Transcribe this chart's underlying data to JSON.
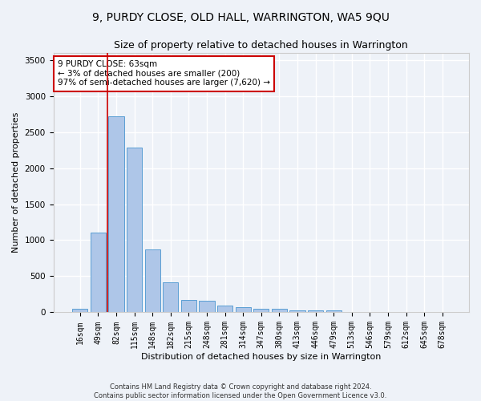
{
  "title1": "9, PURDY CLOSE, OLD HALL, WARRINGTON, WA5 9QU",
  "title2": "Size of property relative to detached houses in Warrington",
  "xlabel": "Distribution of detached houses by size in Warrington",
  "ylabel": "Number of detached properties",
  "categories": [
    "16sqm",
    "49sqm",
    "82sqm",
    "115sqm",
    "148sqm",
    "182sqm",
    "215sqm",
    "248sqm",
    "281sqm",
    "314sqm",
    "347sqm",
    "380sqm",
    "413sqm",
    "446sqm",
    "479sqm",
    "513sqm",
    "546sqm",
    "579sqm",
    "612sqm",
    "645sqm",
    "678sqm"
  ],
  "values": [
    50,
    1110,
    2720,
    2280,
    870,
    420,
    175,
    165,
    90,
    70,
    55,
    55,
    30,
    30,
    25,
    5,
    0,
    0,
    0,
    0,
    0
  ],
  "bar_color": "#aec6e8",
  "bar_edge_color": "#5a9fd4",
  "annotation_text": "9 PURDY CLOSE: 63sqm\n← 3% of detached houses are smaller (200)\n97% of semi-detached houses are larger (7,620) →",
  "annotation_box_color": "#ffffff",
  "annotation_box_edge_color": "#cc0000",
  "vline_x": 1.5,
  "ylim": [
    0,
    3600
  ],
  "yticks": [
    0,
    500,
    1000,
    1500,
    2000,
    2500,
    3000,
    3500
  ],
  "footer1": "Contains HM Land Registry data © Crown copyright and database right 2024.",
  "footer2": "Contains public sector information licensed under the Open Government Licence v3.0.",
  "bg_color": "#eef2f8",
  "plot_bg_color": "#eef2f8",
  "grid_color": "#ffffff",
  "title1_fontsize": 10,
  "title2_fontsize": 9,
  "axis_label_fontsize": 8,
  "tick_fontsize": 7,
  "annotation_fontsize": 7.5,
  "footer_fontsize": 6
}
